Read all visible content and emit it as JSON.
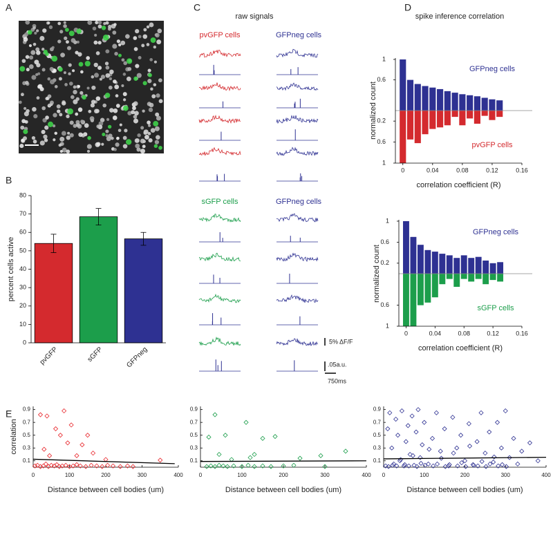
{
  "panel_labels": [
    "A",
    "B",
    "C",
    "D",
    "E"
  ],
  "panel_c": {
    "title": "raw signals",
    "groups": [
      {
        "left": "pvGFP cells",
        "right": "GFPneg cells"
      },
      {
        "left": "sGFP cells",
        "right": "GFPneg cells"
      }
    ],
    "scale_labels": [
      "5% ΔF/F",
      ".05a.u.",
      "750ms"
    ]
  },
  "panel_d": {
    "title": "spike inference correlation"
  },
  "chart_data": [
    {
      "type": "bar",
      "ylabel": "percent cells active",
      "categories": [
        "pvGFP",
        "sGFP",
        "GFPneg"
      ],
      "values": [
        54,
        68.5,
        56.5
      ],
      "errors": [
        5,
        4.5,
        3.5
      ],
      "colors": [
        "#d42a2e",
        "#1c9e4b",
        "#2e3192"
      ],
      "ylim": [
        0,
        80
      ],
      "yticks": [
        0,
        10,
        20,
        30,
        40,
        50,
        60,
        70,
        80
      ]
    },
    {
      "type": "bar",
      "xlabel": "correlation coefficient (R)",
      "ylabel": "normalized count",
      "x": [
        0,
        0.01,
        0.02,
        0.03,
        0.04,
        0.05,
        0.06,
        0.07,
        0.08,
        0.09,
        0.1,
        0.11,
        0.12,
        0.13
      ],
      "series": [
        {
          "name": "GFPneg cells",
          "color": "#2e3192",
          "values": [
            1,
            0.6,
            0.52,
            0.48,
            0.45,
            0.42,
            0.38,
            0.35,
            0.32,
            0.3,
            0.28,
            0.25,
            0.22,
            0.2
          ]
        },
        {
          "name": "pvGFP cells",
          "color": "#d42a2e",
          "axis": "y2",
          "values": [
            1,
            0.55,
            0.62,
            0.45,
            0.35,
            0.32,
            0.28,
            0.12,
            0.28,
            0.15,
            0.25,
            0.1,
            0.18,
            0.12
          ]
        }
      ],
      "xlim": [
        -0.01,
        0.16
      ],
      "xticks": [
        0,
        0.04,
        0.08,
        0.12,
        0.16
      ],
      "ylim": [
        0,
        1
      ],
      "yticks": [
        0.6,
        1
      ],
      "y2lim": [
        0,
        1
      ],
      "y2ticks": [
        0.2,
        0.6,
        1
      ]
    },
    {
      "type": "bar",
      "xlabel": "correlation coefficient (R)",
      "ylabel": "normalized count",
      "x": [
        0,
        0.01,
        0.02,
        0.03,
        0.04,
        0.05,
        0.06,
        0.07,
        0.08,
        0.09,
        0.1,
        0.11,
        0.12,
        0.13
      ],
      "series": [
        {
          "name": "GFPneg cells",
          "color": "#2e3192",
          "values": [
            1,
            0.7,
            0.55,
            0.45,
            0.42,
            0.38,
            0.35,
            0.3,
            0.35,
            0.3,
            0.32,
            0.25,
            0.2,
            0.22
          ]
        },
        {
          "name": "sGFP cells",
          "color": "#1c9e4b",
          "axis": "y2",
          "values": [
            1,
            1,
            0.6,
            0.55,
            0.45,
            0.2,
            0.1,
            0.25,
            0.1,
            0.15,
            0.1,
            0.2,
            0.12,
            0.15
          ]
        }
      ],
      "xlim": [
        -0.01,
        0.16
      ],
      "xticks": [
        0,
        0.04,
        0.08,
        0.12,
        0.16
      ],
      "ylim": [
        0,
        1
      ],
      "yticks": [
        0.2,
        0.6,
        1
      ],
      "y2lim": [
        0,
        1
      ],
      "y2ticks": [
        0.6,
        1
      ]
    },
    {
      "type": "scatter",
      "xlabel": "Distance between cell bodies (um)",
      "ylabel": "correlation",
      "series": [
        {
          "color": "#e8262b",
          "x": [
            5,
            12,
            20,
            28,
            35,
            42,
            50,
            58,
            65,
            72,
            80,
            90,
            100,
            110,
            120,
            130,
            145,
            160,
            175,
            190,
            205,
            220,
            240,
            260,
            275,
            20,
            30,
            38,
            45,
            62,
            75,
            85,
            95,
            105,
            120,
            135,
            150,
            165,
            200,
            350
          ],
          "values": [
            0.02,
            0.03,
            0.01,
            0.02,
            0.05,
            0.01,
            0.03,
            0.02,
            0.04,
            0.01,
            0.02,
            0.03,
            0.01,
            0.02,
            0.04,
            0.02,
            0.01,
            0.03,
            0.02,
            0.01,
            0.03,
            0.02,
            0.01,
            0.02,
            0.01,
            0.82,
            0.28,
            0.8,
            0.18,
            0.6,
            0.5,
            0.88,
            0.38,
            0.66,
            0.18,
            0.35,
            0.5,
            0.22,
            0.12,
            0.11
          ]
        }
      ],
      "fit": {
        "x": [
          0,
          390
        ],
        "values": [
          0.125,
          0.055
        ]
      },
      "xlim": [
        0,
        400
      ],
      "xticks": [
        0,
        100,
        200,
        300,
        400
      ],
      "ylim": [
        0,
        0.95
      ],
      "yticks": [
        0.1,
        0.3,
        0.5,
        0.7,
        0.9
      ]
    },
    {
      "type": "scatter",
      "xlabel": "Distance between cell bodies (um)",
      "series": [
        {
          "color": "#1c9e4b",
          "x": [
            15,
            25,
            35,
            45,
            55,
            65,
            80,
            100,
            115,
            130,
            150,
            170,
            200,
            225,
            300,
            20,
            35,
            45,
            60,
            75,
            110,
            120,
            130,
            150,
            180,
            240,
            290,
            350
          ],
          "values": [
            0.01,
            0.02,
            0.01,
            0.03,
            0.02,
            0.01,
            0.02,
            0.01,
            0.03,
            0.01,
            0.02,
            0.01,
            0.02,
            0.03,
            0.01,
            0.47,
            0.82,
            0.2,
            0.5,
            0.12,
            0.7,
            0.15,
            0.2,
            0.45,
            0.48,
            0.14,
            0.18,
            0.25
          ]
        }
      ],
      "fit": {
        "x": [
          0,
          400
        ],
        "values": [
          0.09,
          0.1
        ]
      },
      "xlim": [
        0,
        400
      ],
      "xticks": [
        0,
        100,
        200,
        300,
        400
      ],
      "ylim": [
        0,
        0.95
      ],
      "yticks": [
        0.1,
        0.3,
        0.5,
        0.7,
        0.9
      ]
    },
    {
      "type": "scatter",
      "xlabel": "Distance between cell bodies (um)",
      "series": [
        {
          "color": "#2e3192",
          "x": [
            5,
            10,
            15,
            20,
            25,
            30,
            35,
            40,
            45,
            50,
            55,
            60,
            65,
            70,
            75,
            80,
            85,
            90,
            95,
            100,
            110,
            120,
            130,
            140,
            150,
            160,
            170,
            180,
            190,
            200,
            210,
            220,
            230,
            240,
            250,
            260,
            270,
            280,
            290,
            300,
            310,
            320,
            330,
            340,
            360,
            380,
            12,
            22,
            32,
            42,
            52,
            62,
            72,
            82,
            92,
            102,
            112,
            122,
            132,
            142,
            152,
            162,
            172,
            182,
            192,
            202,
            212,
            222,
            232,
            242,
            252,
            262,
            272,
            282,
            292,
            302
          ],
          "values": [
            0.02,
            0.6,
            0.85,
            0.3,
            0.05,
            0.75,
            0.5,
            0.1,
            0.88,
            0.02,
            0.4,
            0.65,
            0.2,
            0.8,
            0.03,
            0.55,
            0.9,
            0.15,
            0.35,
            0.7,
            0.05,
            0.45,
            0.85,
            0.25,
            0.6,
            0.02,
            0.78,
            0.3,
            0.5,
            0.1,
            0.68,
            0.04,
            0.4,
            0.85,
            0.22,
            0.55,
            0.08,
            0.7,
            0.3,
            0.88,
            0.15,
            0.45,
            0.05,
            0.25,
            0.38,
            0.1,
            0.01,
            0.03,
            0.02,
            0.12,
            0.04,
            0.02,
            0.18,
            0.01,
            0.06,
            0.03,
            0.28,
            0.02,
            0.05,
            0.14,
            0.01,
            0.04,
            0.22,
            0.02,
            0.07,
            0.01,
            0.33,
            0.03,
            0.02,
            0.09,
            0.01,
            0.05,
            0.16,
            0.02,
            0.04,
            0.01
          ]
        }
      ],
      "fit": {
        "x": [
          0,
          400
        ],
        "values": [
          0.13,
          0.155
        ]
      },
      "xlim": [
        0,
        400
      ],
      "xticks": [
        0,
        100,
        200,
        300,
        400
      ],
      "ylim": [
        0,
        0.95
      ],
      "yticks": [
        0.1,
        0.3,
        0.5,
        0.7,
        0.9
      ]
    }
  ]
}
